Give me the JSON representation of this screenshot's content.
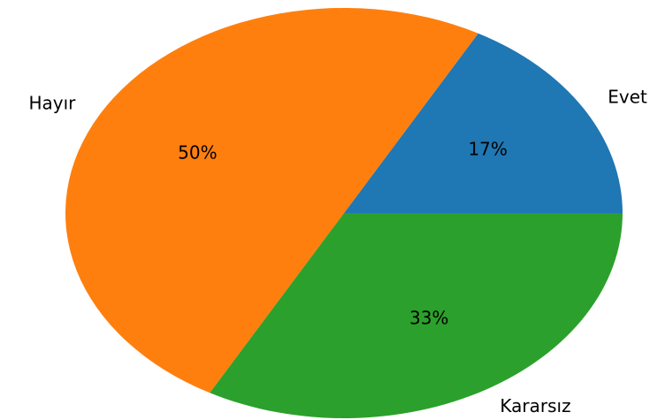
{
  "chart_data": {
    "type": "pie",
    "categories": [
      "Evet",
      "Hayır",
      "Kararsız"
    ],
    "values": [
      17,
      50,
      33
    ],
    "value_labels": [
      "17%",
      "50%",
      "33%"
    ],
    "colors": [
      "#1f77b4",
      "#ff7f0e",
      "#2ca02c"
    ]
  }
}
